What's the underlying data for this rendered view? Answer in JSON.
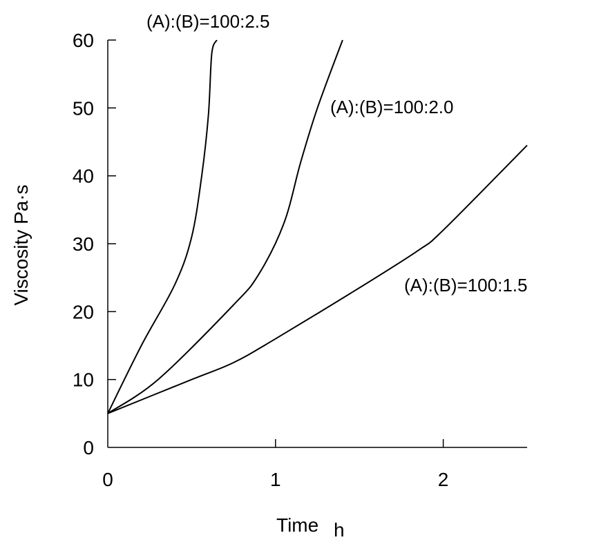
{
  "chart_data": {
    "type": "line",
    "xlabel": "Time",
    "xlabel_unit": "h",
    "ylabel": "Viscosity Pa·s",
    "xlim": [
      0,
      2.5
    ],
    "ylim": [
      0,
      60
    ],
    "xticks": [
      0,
      1,
      2
    ],
    "yticks": [
      0,
      10,
      20,
      30,
      40,
      50,
      60
    ],
    "grid": false,
    "series": [
      {
        "name": "(A):(B)=100:2.5",
        "x": [
          0,
          0.2,
          0.4,
          0.5,
          0.56,
          0.6,
          0.62,
          0.65
        ],
        "y": [
          5,
          15,
          24,
          31,
          40,
          49,
          58,
          60
        ]
      },
      {
        "name": "(A):(B)=100:2.0",
        "x": [
          0,
          0.3,
          0.75,
          0.9,
          1.05,
          1.15,
          1.25,
          1.4
        ],
        "y": [
          5,
          10,
          21,
          25.5,
          33,
          42,
          50,
          60
        ]
      },
      {
        "name": "(A):(B)=100:1.5",
        "x": [
          0,
          0.5,
          0.75,
          1.0,
          1.5,
          1.85,
          2.0,
          2.5
        ],
        "y": [
          5,
          10,
          12.5,
          16,
          23.5,
          29,
          32,
          44.5
        ]
      }
    ]
  }
}
